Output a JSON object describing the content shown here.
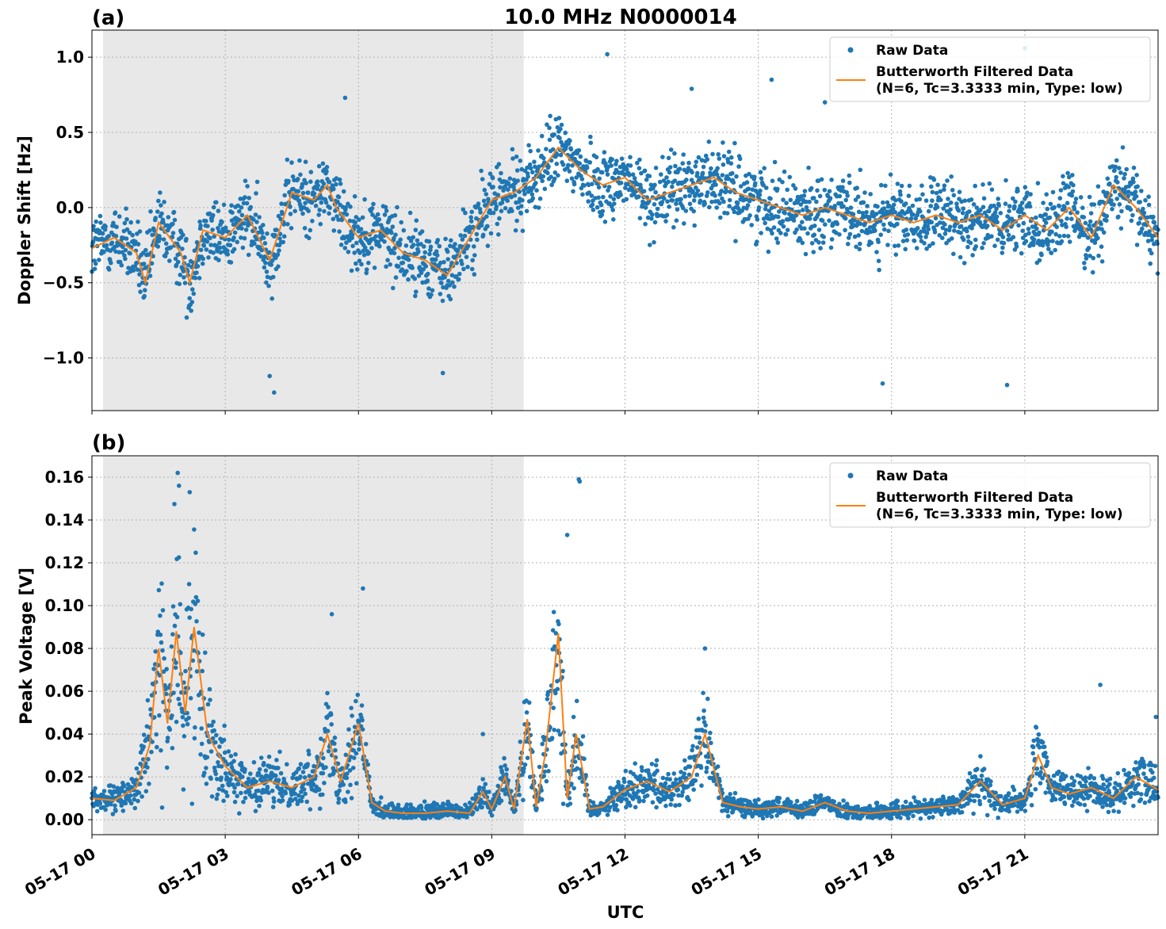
{
  "figure": {
    "title": "10.0 MHz N0000014",
    "xlabel": "UTC"
  },
  "colors": {
    "raw": "#1f77b4",
    "filtered": "#ff7f0e",
    "shade": "#e8e8e8",
    "grid": "#b0b0b0"
  },
  "legend": {
    "raw_label": "Raw Data",
    "filtered_label_line1": "Butterworth Filtered Data",
    "filtered_label_line2": "(N=6, Tc=3.3333 min, Type: low)",
    "placement": "top-right"
  },
  "chart_data": [
    {
      "type": "scatter",
      "panel_label": "(a)",
      "ylabel": "Doppler Shift [Hz]",
      "xlim_hours": [
        0,
        24
      ],
      "ylim": [
        -1.35,
        1.18
      ],
      "yticks": [
        1.0,
        0.5,
        0.0,
        -0.5,
        -1.0
      ],
      "ytick_labels": [
        "1.0",
        "0.5",
        "0.0",
        "−0.5",
        "−1.0"
      ],
      "xticks": [
        0,
        3,
        6,
        9,
        12,
        15,
        18,
        21
      ],
      "xtick_labels": [
        "05-17 00",
        "05-17 03",
        "05-17 06",
        "05-17 09",
        "05-17 12",
        "05-17 15",
        "05-17 18",
        "05-17 21"
      ],
      "grid": true,
      "shaded_interval_hours": [
        0.25,
        9.72
      ],
      "series": [
        {
          "name": "Butterworth Filtered Data",
          "kind": "line",
          "x_hours": [
            0,
            0.5,
            1,
            1.2,
            1.5,
            2,
            2.2,
            2.5,
            3,
            3.5,
            4,
            4.5,
            5,
            5.3,
            5.5,
            6,
            6.5,
            7,
            7.5,
            8,
            8.5,
            9,
            9.5,
            10,
            10.5,
            11,
            11.5,
            12,
            12.5,
            13,
            13.5,
            14,
            14.5,
            15,
            15.5,
            16,
            16.5,
            17,
            17.5,
            18,
            18.5,
            19,
            19.5,
            20,
            20.5,
            21,
            21.5,
            22,
            22.5,
            23,
            23.5,
            24
          ],
          "y": [
            -0.27,
            -0.2,
            -0.3,
            -0.5,
            -0.1,
            -0.3,
            -0.5,
            -0.15,
            -0.2,
            -0.05,
            -0.35,
            0.1,
            0.05,
            0.15,
            0.0,
            -0.2,
            -0.15,
            -0.3,
            -0.35,
            -0.45,
            -0.2,
            0.05,
            0.1,
            0.2,
            0.4,
            0.25,
            0.15,
            0.2,
            0.05,
            0.1,
            0.15,
            0.2,
            0.1,
            0.05,
            0.0,
            -0.05,
            0.0,
            -0.05,
            -0.1,
            -0.05,
            -0.1,
            -0.05,
            -0.1,
            -0.05,
            -0.15,
            -0.05,
            -0.15,
            0.0,
            -0.2,
            0.15,
            0.0,
            -0.2
          ]
        },
        {
          "name": "Raw Data",
          "kind": "points",
          "spread": 0.22,
          "outlier_points": [
            [
              4.1,
              -1.23
            ],
            [
              4.0,
              -1.12
            ],
            [
              7.9,
              -1.1
            ],
            [
              11.6,
              1.02
            ],
            [
              20.6,
              -1.18
            ],
            [
              21.0,
              1.06
            ],
            [
              15.3,
              0.85
            ],
            [
              16.5,
              0.7
            ],
            [
              17.8,
              -1.17
            ],
            [
              13.5,
              0.79
            ],
            [
              5.7,
              0.73
            ]
          ]
        }
      ]
    },
    {
      "type": "scatter",
      "panel_label": "(b)",
      "ylabel": "Peak Voltage [V]",
      "xlim_hours": [
        0,
        24
      ],
      "ylim": [
        -0.007,
        0.17
      ],
      "yticks": [
        0.16,
        0.14,
        0.12,
        0.1,
        0.08,
        0.06,
        0.04,
        0.02,
        0.0
      ],
      "ytick_labels": [
        "0.16",
        "0.14",
        "0.12",
        "0.10",
        "0.08",
        "0.06",
        "0.04",
        "0.02",
        "0.00"
      ],
      "xticks": [
        0,
        3,
        6,
        9,
        12,
        15,
        18,
        21
      ],
      "xtick_labels": [
        "05-17 00",
        "05-17 03",
        "05-17 06",
        "05-17 09",
        "05-17 12",
        "05-17 15",
        "05-17 18",
        "05-17 21"
      ],
      "grid": true,
      "shaded_interval_hours": [
        0.25,
        9.72
      ],
      "series": [
        {
          "name": "Butterworth Filtered Data",
          "kind": "line",
          "x_hours": [
            0,
            0.5,
            1,
            1.3,
            1.5,
            1.7,
            1.9,
            2.1,
            2.3,
            2.6,
            3,
            3.5,
            4,
            4.5,
            5,
            5.3,
            5.6,
            6,
            6.3,
            6.6,
            7,
            7.5,
            8,
            8.5,
            8.8,
            9,
            9.3,
            9.5,
            9.8,
            10,
            10.2,
            10.5,
            10.7,
            10.9,
            11.2,
            11.5,
            12,
            12.5,
            13,
            13.5,
            13.8,
            14.2,
            14.6,
            15,
            15.5,
            16,
            16.5,
            17,
            17.5,
            18,
            18.5,
            19,
            19.5,
            20,
            20.5,
            21,
            21.3,
            21.6,
            22,
            22.5,
            23,
            23.5,
            24
          ],
          "y": [
            0.01,
            0.009,
            0.015,
            0.035,
            0.08,
            0.045,
            0.088,
            0.05,
            0.09,
            0.04,
            0.025,
            0.015,
            0.018,
            0.015,
            0.02,
            0.04,
            0.018,
            0.045,
            0.008,
            0.004,
            0.003,
            0.003,
            0.004,
            0.003,
            0.013,
            0.005,
            0.02,
            0.005,
            0.047,
            0.006,
            0.03,
            0.087,
            0.01,
            0.04,
            0.005,
            0.006,
            0.014,
            0.018,
            0.013,
            0.02,
            0.04,
            0.008,
            0.006,
            0.005,
            0.006,
            0.004,
            0.008,
            0.004,
            0.003,
            0.004,
            0.005,
            0.006,
            0.007,
            0.018,
            0.007,
            0.01,
            0.03,
            0.015,
            0.012,
            0.015,
            0.01,
            0.02,
            0.014
          ]
        },
        {
          "name": "Raw Data",
          "kind": "points",
          "spread_factor": 0.6,
          "outlier_points": [
            [
              1.93,
              0.162
            ],
            [
              1.96,
              0.156
            ],
            [
              2.2,
              0.153
            ],
            [
              10.98,
              0.158
            ],
            [
              10.96,
              0.159
            ],
            [
              10.7,
              0.133
            ],
            [
              6.1,
              0.108
            ],
            [
              5.4,
              0.096
            ],
            [
              13.8,
              0.08
            ],
            [
              22.7,
              0.063
            ],
            [
              8.8,
              0.04
            ],
            [
              23.95,
              0.048
            ]
          ]
        }
      ]
    }
  ]
}
